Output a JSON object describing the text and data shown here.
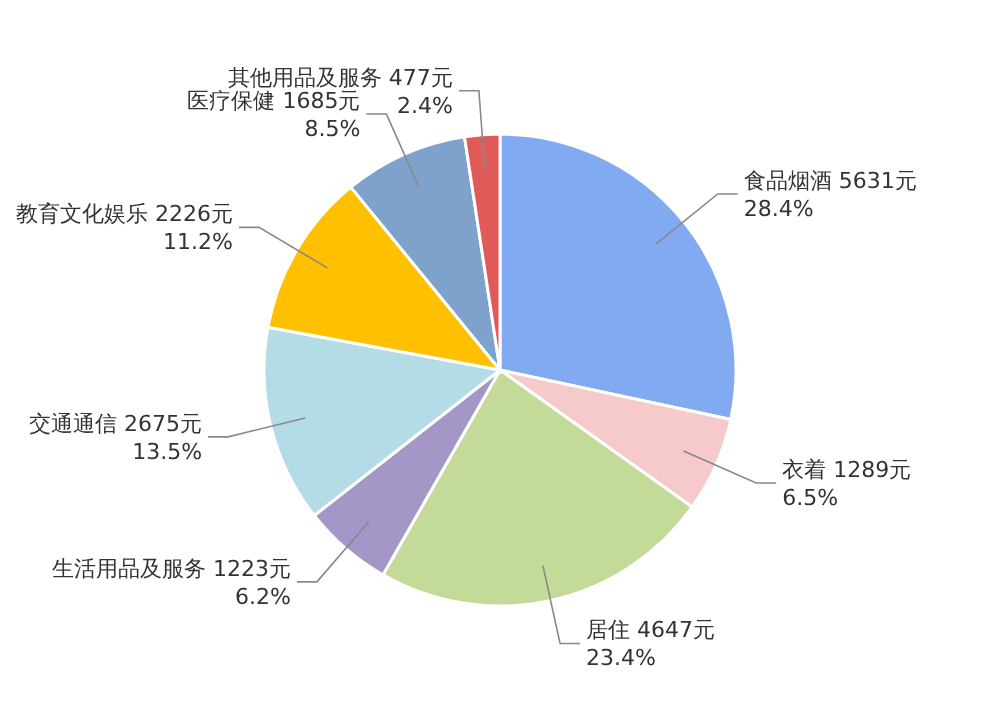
{
  "chart_data": {
    "type": "pie",
    "categories": [
      "食品烟酒",
      "衣着",
      "居住",
      "生活用品及服务",
      "交通通信",
      "教育文化娱乐",
      "医疗保健",
      "其他用品及服务"
    ],
    "values": [
      5631,
      1289,
      4647,
      1223,
      2675,
      2226,
      1685,
      477
    ],
    "value_labels": [
      "5631元",
      "1289元",
      "4647元",
      "1223元",
      "2675元",
      "2226元",
      "1685元",
      "477元"
    ],
    "colors": [
      "#82aaf0",
      "#f6caca",
      "#c3da98",
      "#a596c8",
      "#b4dce6",
      "#ffc000",
      "#7ea2cc",
      "#e05a5a"
    ],
    "annotations": [
      "28.4%",
      "6.5%",
      "23.4%",
      "6.2%",
      "13.5%",
      "11.2%",
      "8.5%",
      "2.4%"
    ]
  }
}
